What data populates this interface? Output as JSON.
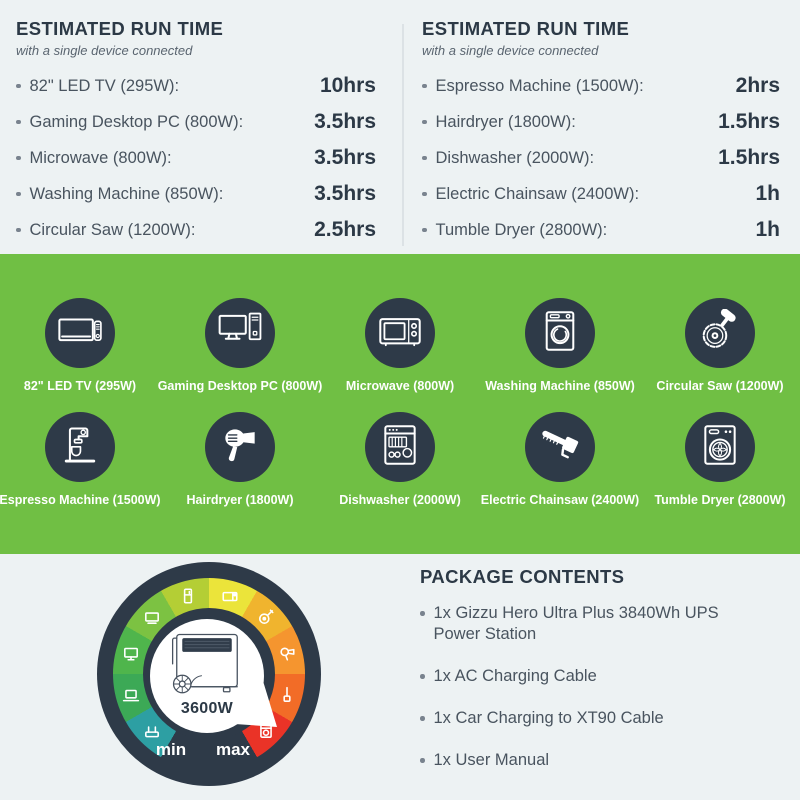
{
  "colors": {
    "background": "#EDF2F3",
    "band_green": "#70BF44",
    "dark_navy": "#2E3A48",
    "text_primary": "#2C3946",
    "text_secondary": "#49545F",
    "divider": "#DCE2E5"
  },
  "runtime_left": {
    "title": "ESTIMATED RUN TIME",
    "subtitle": "with a single device connected",
    "items": [
      {
        "label": "82\" LED TV (295W):",
        "value": "10hrs"
      },
      {
        "label": "Gaming Desktop PC (800W):",
        "value": "3.5hrs"
      },
      {
        "label": "Microwave (800W):",
        "value": "3.5hrs"
      },
      {
        "label": "Washing Machine (850W):",
        "value": "3.5hrs"
      },
      {
        "label": "Circular Saw (1200W):",
        "value": "2.5hrs"
      }
    ]
  },
  "runtime_right": {
    "title": "ESTIMATED RUN TIME",
    "subtitle": "with a single device connected",
    "items": [
      {
        "label": "Espresso Machine (1500W):",
        "value": "2hrs"
      },
      {
        "label": "Hairdryer (1800W):",
        "value": "1.5hrs"
      },
      {
        "label": "Dishwasher (2000W):",
        "value": "1.5hrs"
      },
      {
        "label": "Electric Chainsaw (2400W):",
        "value": "1h"
      },
      {
        "label": "Tumble Dryer (2800W):",
        "value": "1h"
      }
    ]
  },
  "devices": {
    "row1": [
      {
        "label": "82\" LED TV (295W)",
        "icon": "led-tv-icon"
      },
      {
        "label": "Gaming Desktop PC (800W)",
        "icon": "desktop-pc-icon"
      },
      {
        "label": "Microwave (800W)",
        "icon": "microwave-icon"
      },
      {
        "label": "Washing Machine (850W)",
        "icon": "washing-machine-icon"
      },
      {
        "label": "Circular Saw (1200W)",
        "icon": "circular-saw-icon"
      }
    ],
    "row2": [
      {
        "label": "Espresso Machine (1500W)",
        "icon": "espresso-machine-icon"
      },
      {
        "label": "Hairdryer (1800W)",
        "icon": "hairdryer-icon"
      },
      {
        "label": "Dishwasher (2000W)",
        "icon": "dishwasher-icon"
      },
      {
        "label": "Electric Chainsaw (2400W)",
        "icon": "chainsaw-icon"
      },
      {
        "label": "Tumble Dryer (2800W)",
        "icon": "tumble-dryer-icon"
      }
    ]
  },
  "gauge": {
    "wattage": "3600W",
    "min_label": "min",
    "max_label": "max",
    "segments": [
      {
        "icon": "router-icon",
        "color": "#2D9FA3"
      },
      {
        "icon": "laptop-icon",
        "color": "#3CA956"
      },
      {
        "icon": "monitor-icon",
        "color": "#4FB54C"
      },
      {
        "icon": "tv-icon",
        "color": "#7CC242"
      },
      {
        "icon": "fridge-icon",
        "color": "#B4CE35"
      },
      {
        "icon": "microwave-icon",
        "color": "#EBE43A"
      },
      {
        "icon": "saw-icon",
        "color": "#F0B42E"
      },
      {
        "icon": "hairdryer-icon",
        "color": "#F5952F"
      },
      {
        "icon": "chainsaw-icon",
        "color": "#F26C27"
      },
      {
        "icon": "washing-machine-icon",
        "color": "#EA3327"
      }
    ]
  },
  "package": {
    "title": "PACKAGE CONTENTS",
    "items": [
      "1x Gizzu Hero Ultra Plus 3840Wh UPS Power Station",
      "1x AC Charging Cable",
      "1x Car Charging to XT90 Cable",
      "1x User Manual"
    ]
  }
}
